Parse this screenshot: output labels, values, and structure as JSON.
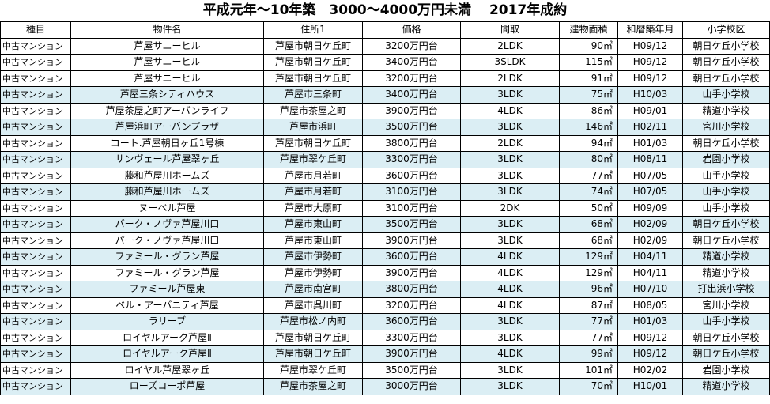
{
  "title": "平成元年～10年築　3000～4000万円未満　 2017年成約",
  "columns": [
    "種目",
    "物件名",
    "住所1",
    "価格",
    "間取",
    "建物面積",
    "和暦築年月",
    "小学校区"
  ],
  "rows": [
    {
      "type": "中古マンション",
      "name": "芦屋サニーヒル",
      "address": "芦屋市朝日ケ丘町",
      "price": "3200万円台",
      "layout": "2LDK",
      "area": "90㎡",
      "built": "H09/12",
      "school": "朝日ケ丘小学校",
      "highlight": false
    },
    {
      "type": "中古マンション",
      "name": "芦屋サニーヒル",
      "address": "芦屋市朝日ケ丘町",
      "price": "3400万円台",
      "layout": "3SLDK",
      "area": "115㎡",
      "built": "H09/12",
      "school": "朝日ケ丘小学校",
      "highlight": false
    },
    {
      "type": "中古マンション",
      "name": "芦屋サニーヒル",
      "address": "芦屋市朝日ケ丘町",
      "price": "3200万円台",
      "layout": "2LDK",
      "area": "91㎡",
      "built": "H09/12",
      "school": "朝日ケ丘小学校",
      "highlight": false
    },
    {
      "type": "中古マンション",
      "name": "芦屋三条シティハウス",
      "address": "芦屋市三条町",
      "price": "3400万円台",
      "layout": "3LDK",
      "area": "75㎡",
      "built": "H10/03",
      "school": "山手小学校",
      "highlight": true
    },
    {
      "type": "中古マンション",
      "name": "芦屋茶屋之町アーバンライフ",
      "address": "芦屋市茶屋之町",
      "price": "3900万円台",
      "layout": "4LDK",
      "area": "86㎡",
      "built": "H09/01",
      "school": "精道小学校",
      "highlight": false
    },
    {
      "type": "中古マンション",
      "name": "芦屋浜町アーバンプラザ",
      "address": "芦屋市浜町",
      "price": "3500万円台",
      "layout": "3LDK",
      "area": "146㎡",
      "built": "H02/11",
      "school": "宮川小学校",
      "highlight": true
    },
    {
      "type": "中古マンション",
      "name": "コート.芦屋朝日ヶ丘1号棟",
      "address": "芦屋市朝日ケ丘町",
      "price": "3800万円台",
      "layout": "2LDK",
      "area": "94㎡",
      "built": "H01/03",
      "school": "朝日ケ丘小学校",
      "highlight": false
    },
    {
      "type": "中古マンション",
      "name": "サンヴェール芦屋翠ヶ丘",
      "address": "芦屋市翠ケ丘町",
      "price": "3300万円台",
      "layout": "3LDK",
      "area": "80㎡",
      "built": "H08/11",
      "school": "岩園小学校",
      "highlight": true
    },
    {
      "type": "中古マンション",
      "name": "藤和芦屋川ホームズ",
      "address": "芦屋市月若町",
      "price": "3600万円台",
      "layout": "3LDK",
      "area": "77㎡",
      "built": "H07/05",
      "school": "山手小学校",
      "highlight": false
    },
    {
      "type": "中古マンション",
      "name": "藤和芦屋川ホームズ",
      "address": "芦屋市月若町",
      "price": "3100万円台",
      "layout": "3LDK",
      "area": "74㎡",
      "built": "H07/05",
      "school": "山手小学校",
      "highlight": true
    },
    {
      "type": "中古マンション",
      "name": "ヌーベル芦屋",
      "address": "芦屋市大原町",
      "price": "3100万円台",
      "layout": "2DK",
      "area": "50㎡",
      "built": "H09/09",
      "school": "山手小学校",
      "highlight": false
    },
    {
      "type": "中古マンション",
      "name": "パーク・ノヴァ芦屋川口",
      "address": "芦屋市東山町",
      "price": "3500万円台",
      "layout": "3LDK",
      "area": "68㎡",
      "built": "H02/09",
      "school": "朝日ケ丘小学校",
      "highlight": true
    },
    {
      "type": "中古マンション",
      "name": "パーク・ノヴァ芦屋川口",
      "address": "芦屋市東山町",
      "price": "3900万円台",
      "layout": "3LDK",
      "area": "68㎡",
      "built": "H02/09",
      "school": "朝日ケ丘小学校",
      "highlight": false
    },
    {
      "type": "中古マンション",
      "name": "ファミール・グラン芦屋",
      "address": "芦屋市伊勢町",
      "price": "3600万円台",
      "layout": "4LDK",
      "area": "129㎡",
      "built": "H04/11",
      "school": "精道小学校",
      "highlight": true
    },
    {
      "type": "中古マンション",
      "name": "ファミール・グラン芦屋",
      "address": "芦屋市伊勢町",
      "price": "3900万円台",
      "layout": "4LDK",
      "area": "129㎡",
      "built": "H04/11",
      "school": "精道小学校",
      "highlight": false
    },
    {
      "type": "中古マンション",
      "name": "ファミール芦屋東",
      "address": "芦屋市南宮町",
      "price": "3800万円台",
      "layout": "4LDK",
      "area": "96㎡",
      "built": "H07/10",
      "school": "打出浜小学校",
      "highlight": true
    },
    {
      "type": "中古マンション",
      "name": "ベル・アーバニティ芦屋",
      "address": "芦屋市呉川町",
      "price": "3200万円台",
      "layout": "4LDK",
      "area": "87㎡",
      "built": "H08/05",
      "school": "宮川小学校",
      "highlight": false
    },
    {
      "type": "中古マンション",
      "name": "ラリーブ",
      "address": "芦屋市松ノ内町",
      "price": "3600万円台",
      "layout": "3LDK",
      "area": "77㎡",
      "built": "H01/03",
      "school": "山手小学校",
      "highlight": true
    },
    {
      "type": "中古マンション",
      "name": "ロイヤルアーク芦屋Ⅱ",
      "address": "芦屋市朝日ケ丘町",
      "price": "3300万円台",
      "layout": "3LDK",
      "area": "77㎡",
      "built": "H09/12",
      "school": "朝日ケ丘小学校",
      "highlight": false
    },
    {
      "type": "中古マンション",
      "name": "ロイヤルアーク芦屋Ⅱ",
      "address": "芦屋市朝日ケ丘町",
      "price": "3900万円台",
      "layout": "4LDK",
      "area": "99㎡",
      "built": "H09/12",
      "school": "朝日ケ丘小学校",
      "highlight": true
    },
    {
      "type": "中古マンション",
      "name": "ロイヤル芦屋翠ヶ丘",
      "address": "芦屋市翠ケ丘町",
      "price": "3500万円台",
      "layout": "3LDK",
      "area": "101㎡",
      "built": "H02/02",
      "school": "岩園小学校",
      "highlight": false
    },
    {
      "type": "中古マンション",
      "name": "ローズコーポ芦屋",
      "address": "芦屋市茶屋之町",
      "price": "3000万円台",
      "layout": "3LDK",
      "area": "70㎡",
      "built": "H10/01",
      "school": "精道小学校",
      "highlight": true
    }
  ]
}
